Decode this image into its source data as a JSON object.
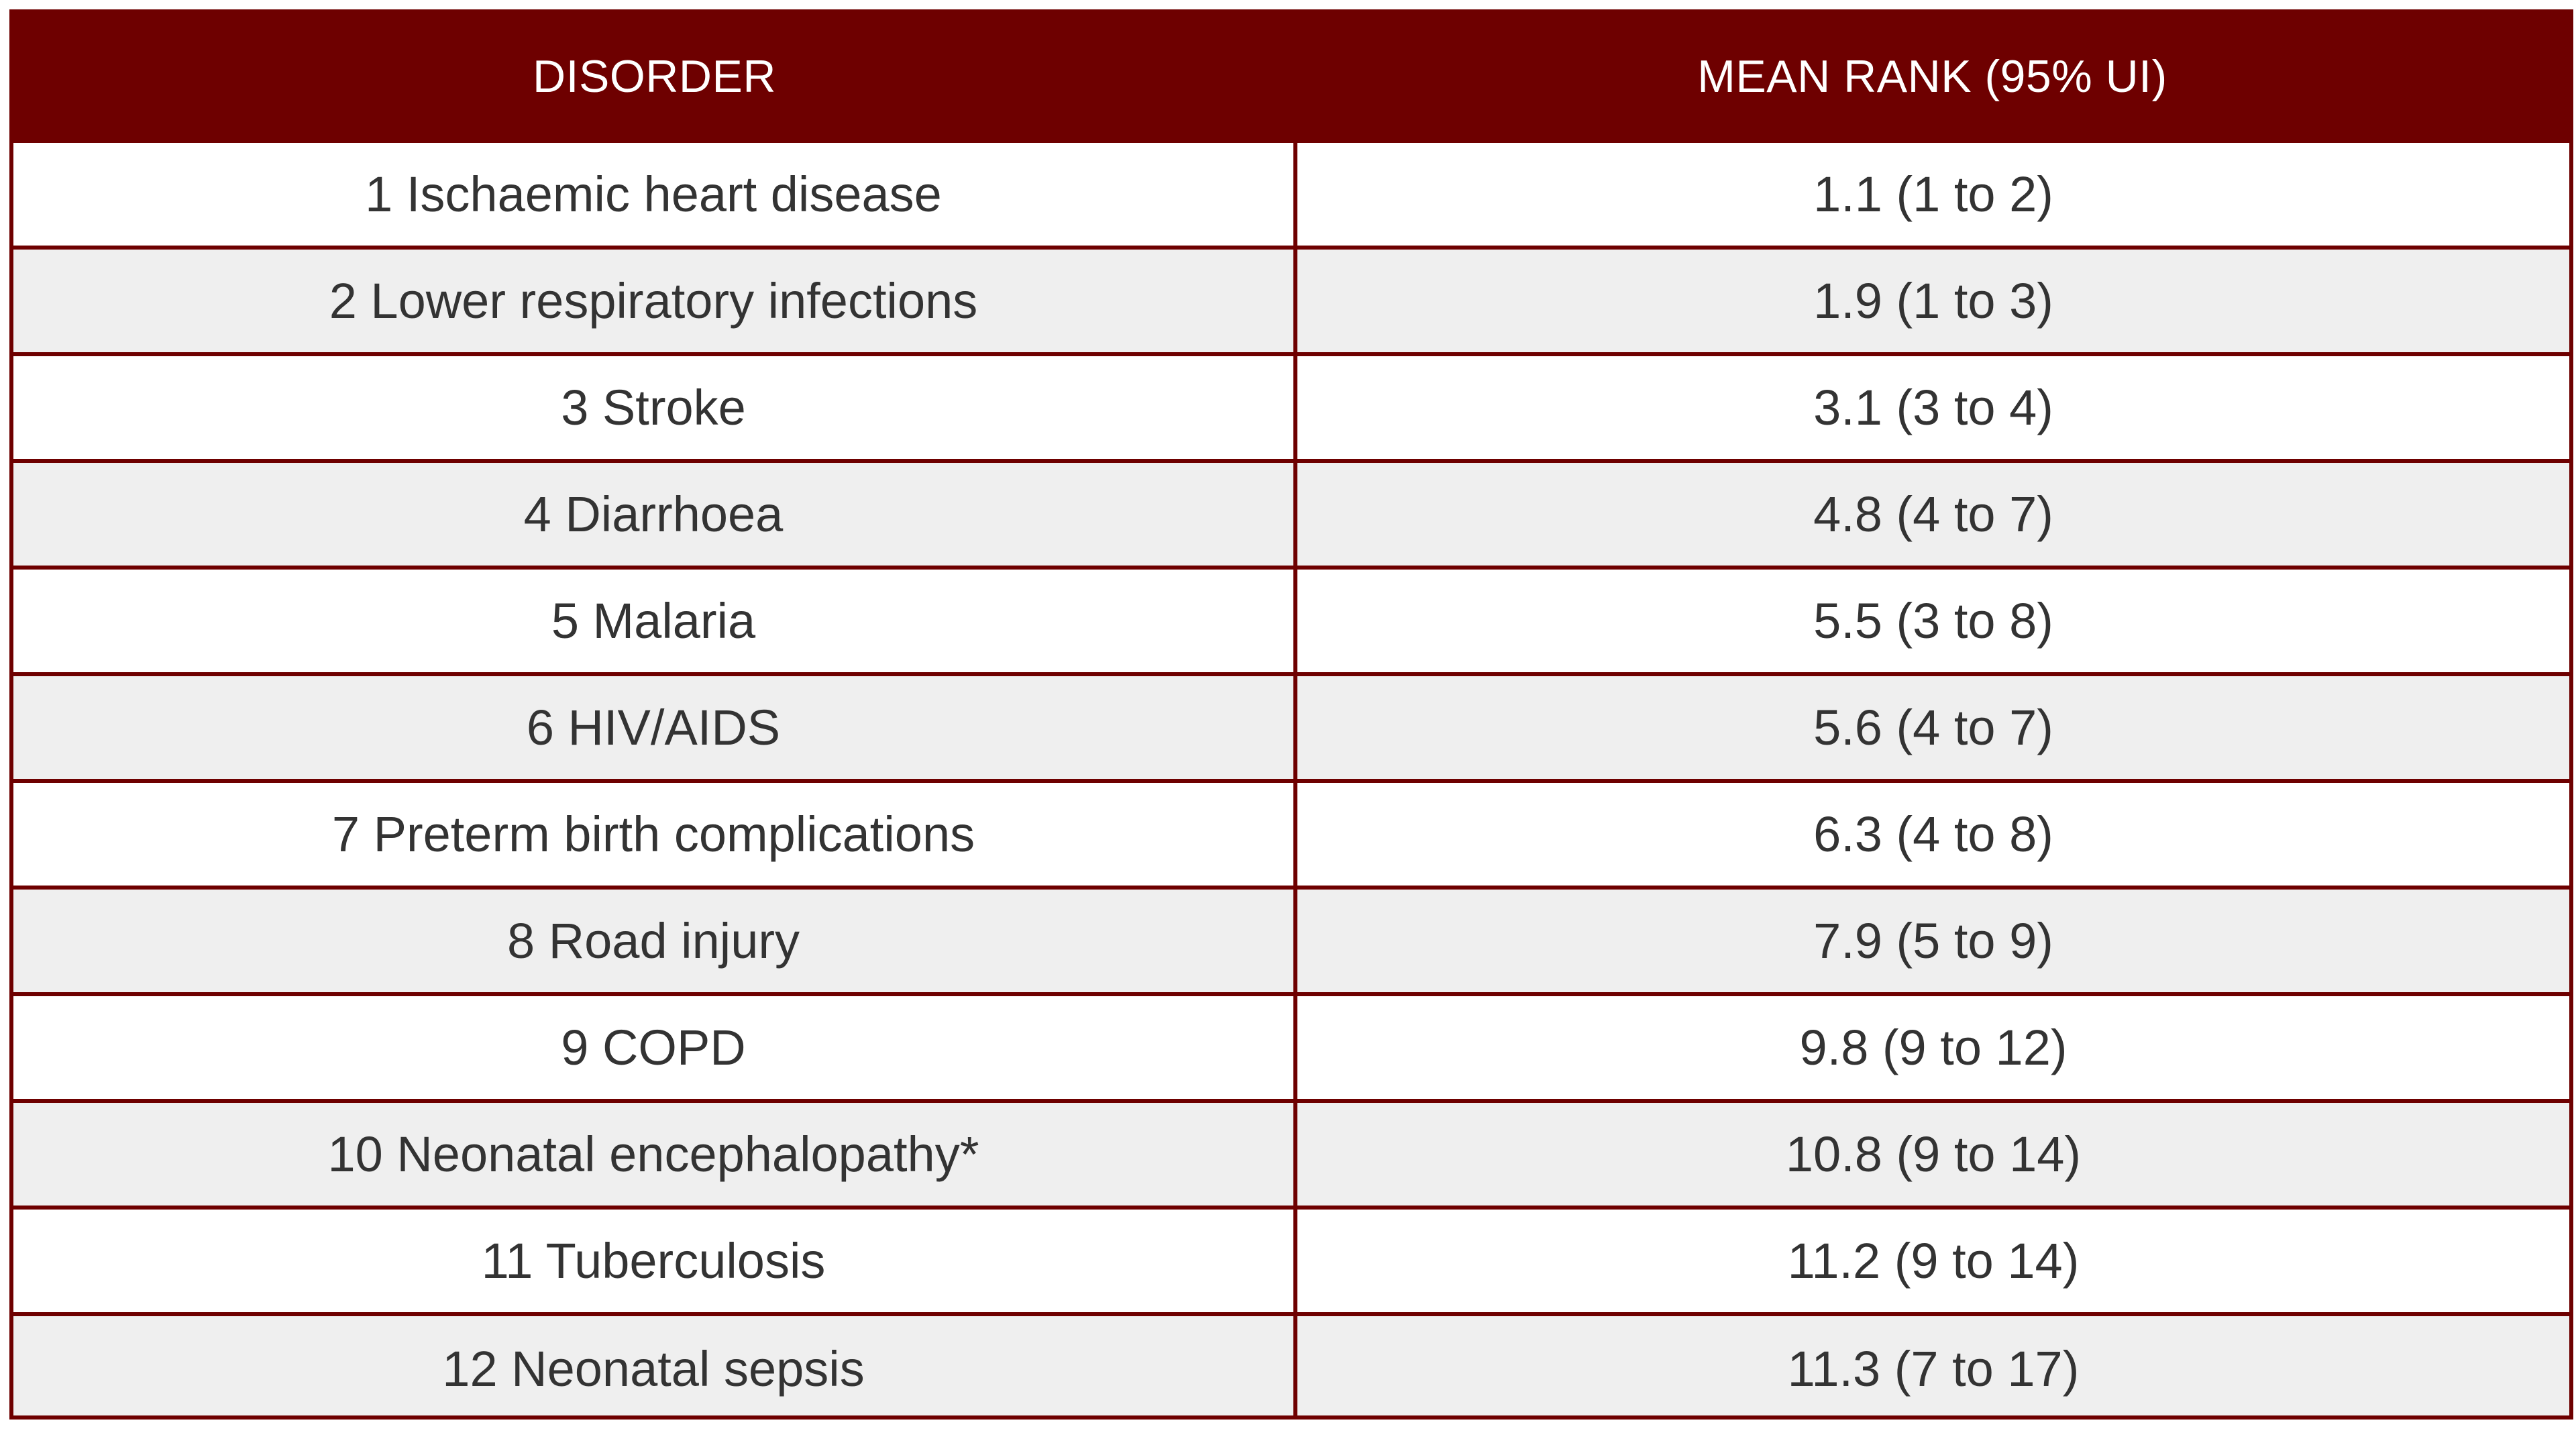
{
  "table": {
    "header": {
      "disorder": "DISORDER",
      "mean_rank": "MEAN RANK (95% UI)"
    },
    "rows": [
      {
        "disorder": "1 Ischaemic heart disease",
        "mean_rank": "1.1 (1 to 2)"
      },
      {
        "disorder": "2 Lower respiratory infections",
        "mean_rank": "1.9 (1 to 3)"
      },
      {
        "disorder": "3 Stroke",
        "mean_rank": "3.1 (3 to 4)"
      },
      {
        "disorder": "4 Diarrhoea",
        "mean_rank": "4.8 (4 to 7)"
      },
      {
        "disorder": "5 Malaria",
        "mean_rank": "5.5 (3 to 8)"
      },
      {
        "disorder": "6 HIV/AIDS",
        "mean_rank": "5.6 (4 to 7)"
      },
      {
        "disorder": "7 Preterm birth complications",
        "mean_rank": "6.3 (4 to 8)"
      },
      {
        "disorder": "8 Road injury",
        "mean_rank": "7.9 (5 to 9)"
      },
      {
        "disorder": "9 COPD",
        "mean_rank": "9.8 (9 to 12)"
      },
      {
        "disorder": "10 Neonatal encephalopathy*",
        "mean_rank": "10.8 (9 to 14)"
      },
      {
        "disorder": "11 Tuberculosis",
        "mean_rank": "11.2 (9 to 14)"
      },
      {
        "disorder": "12 Neonatal sepsis",
        "mean_rank": "11.3 (7 to 17)"
      }
    ]
  },
  "colors": {
    "header_bg": "#6e0000",
    "header_text": "#ffffff",
    "border": "#6e0000",
    "row_alt_bg": "#efefef",
    "row_bg": "#ffffff",
    "cell_text": "#333333"
  }
}
